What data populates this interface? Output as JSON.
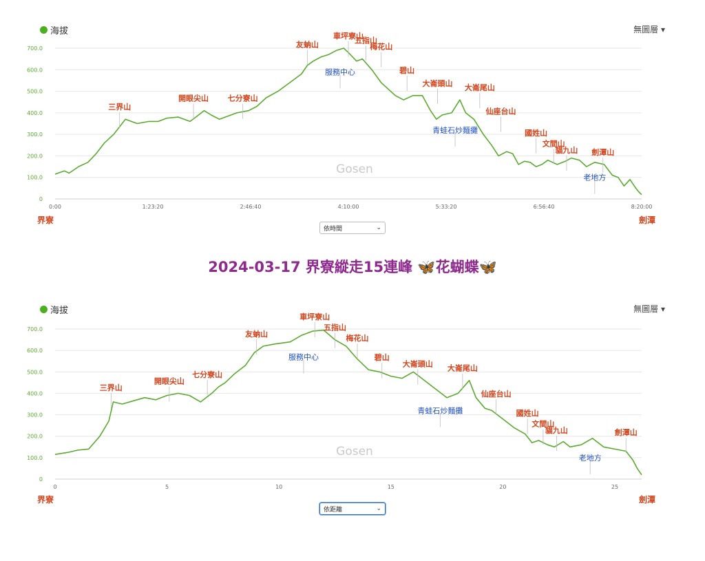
{
  "title_prefix": "2024-03-17 界寮縱走15連峰 ",
  "title_butterfly": "🦋",
  "title_mid": "花蝴蝶",
  "legend_label": "海拔",
  "layer_label": "無圖層 ▾",
  "watermark": "Gosen",
  "colors": {
    "line": "#5aaa2e",
    "peak": "#d2461e",
    "poi": "#1f4fbf",
    "title": "#8e2a8e",
    "ytick": "#5aaa2e"
  },
  "start_label": "界寮",
  "end_label": "劍潭",
  "chart_data": [
    {
      "type": "line",
      "name": "elevation-by-time",
      "selector": "依時間",
      "y_ticks": [
        "0",
        "100.0",
        "200.0",
        "300.0",
        "400.0",
        "500.0",
        "600.0",
        "700.0"
      ],
      "x_ticks": [
        "0:00",
        "1:23:20",
        "2:46:40",
        "4:10:00",
        "5:33:20",
        "6:56:40",
        "8:20:00"
      ],
      "xlim": [
        0,
        500
      ],
      "ylim": [
        0,
        700
      ],
      "x": [
        0,
        8,
        12,
        20,
        28,
        35,
        42,
        50,
        60,
        70,
        80,
        88,
        95,
        105,
        115,
        120,
        127,
        133,
        140,
        145,
        155,
        165,
        172,
        180,
        190,
        200,
        210,
        215,
        220,
        227,
        233,
        240,
        246,
        250,
        257,
        262,
        270,
        278,
        282,
        290,
        297,
        305,
        313,
        320,
        325,
        330,
        338,
        345,
        350,
        357,
        365,
        372,
        378,
        385,
        390,
        395,
        400,
        405,
        410,
        415,
        420,
        428,
        435,
        440,
        447,
        453,
        460,
        468,
        475,
        480,
        485,
        490,
        495,
        498,
        500
      ],
      "y": [
        115,
        130,
        120,
        150,
        170,
        210,
        260,
        300,
        370,
        350,
        360,
        360,
        375,
        380,
        360,
        380,
        410,
        390,
        370,
        380,
        400,
        410,
        430,
        470,
        500,
        540,
        580,
        620,
        640,
        660,
        670,
        690,
        700,
        680,
        640,
        650,
        600,
        540,
        520,
        480,
        460,
        480,
        480,
        410,
        370,
        390,
        400,
        460,
        400,
        370,
        300,
        250,
        200,
        220,
        210,
        160,
        175,
        170,
        150,
        160,
        180,
        160,
        175,
        190,
        180,
        150,
        170,
        160,
        110,
        100,
        60,
        90,
        50,
        30,
        20
      ],
      "peaks": [
        {
          "name": "三界山",
          "x": 55,
          "y": 370
        },
        {
          "name": "開眼尖山",
          "x": 118,
          "y": 410
        },
        {
          "name": "七分寮山",
          "x": 160,
          "y": 410
        },
        {
          "name": "友蚋山",
          "x": 215,
          "y": 660
        },
        {
          "name": "車坪寮山",
          "x": 250,
          "y": 700
        },
        {
          "name": "五指山",
          "x": 265,
          "y": 680
        },
        {
          "name": "梅花山",
          "x": 278,
          "y": 650
        },
        {
          "name": "碧山",
          "x": 300,
          "y": 540
        },
        {
          "name": "大崙頭山",
          "x": 326,
          "y": 480
        },
        {
          "name": "大崙尾山",
          "x": 362,
          "y": 460
        },
        {
          "name": "仙座台山",
          "x": 380,
          "y": 350
        },
        {
          "name": "國姓山",
          "x": 410,
          "y": 250
        },
        {
          "name": "文間山",
          "x": 425,
          "y": 200
        },
        {
          "name": "貓九山",
          "x": 436,
          "y": 170
        },
        {
          "name": "劍潭山",
          "x": 467,
          "y": 160
        }
      ],
      "pois": [
        {
          "name": "服務中心",
          "x": 243,
          "y": 590
        },
        {
          "name": "青蛙石炒麵攤",
          "x": 341,
          "y": 320
        },
        {
          "name": "老地方",
          "x": 460,
          "y": 100
        }
      ]
    },
    {
      "type": "line",
      "name": "elevation-by-distance",
      "selector": "依距離",
      "y_ticks": [
        "0",
        "100.0",
        "200.0",
        "300.0",
        "400.0",
        "500.0",
        "600.0",
        "700.0"
      ],
      "x_ticks": [
        "0",
        "5",
        "10",
        "15",
        "20",
        "25"
      ],
      "xlim": [
        0,
        26.2
      ],
      "ylim": [
        0,
        700
      ],
      "x": [
        0,
        0.6,
        1.0,
        1.5,
        2.0,
        2.4,
        2.6,
        3.0,
        3.5,
        4.0,
        4.5,
        5.0,
        5.5,
        6.0,
        6.5,
        7.0,
        7.3,
        7.6,
        8.0,
        8.5,
        8.9,
        9.3,
        9.8,
        10.5,
        11.0,
        11.5,
        12.0,
        12.5,
        13.0,
        13.5,
        14.0,
        14.5,
        15.0,
        15.5,
        16.0,
        16.5,
        17.0,
        17.5,
        18.0,
        18.5,
        18.8,
        19.2,
        19.5,
        20.0,
        20.5,
        21.0,
        21.3,
        21.6,
        22.0,
        22.3,
        22.7,
        23.0,
        23.5,
        24.0,
        24.5,
        25.0,
        25.5,
        25.8,
        26.0,
        26.2
      ],
      "y": [
        115,
        125,
        135,
        140,
        200,
        270,
        360,
        350,
        365,
        380,
        370,
        390,
        400,
        390,
        360,
        400,
        430,
        450,
        490,
        530,
        590,
        620,
        630,
        640,
        670,
        690,
        695,
        650,
        620,
        560,
        510,
        500,
        480,
        470,
        500,
        460,
        420,
        380,
        400,
        460,
        380,
        330,
        320,
        280,
        240,
        210,
        170,
        180,
        160,
        150,
        175,
        150,
        160,
        190,
        150,
        140,
        130,
        90,
        50,
        20
      ],
      "peaks": [
        {
          "name": "三界山",
          "x": 2.5,
          "y": 370
        },
        {
          "name": "開眼尖山",
          "x": 5.1,
          "y": 400
        },
        {
          "name": "七分寮山",
          "x": 6.8,
          "y": 430
        },
        {
          "name": "友蚋山",
          "x": 9.0,
          "y": 620
        },
        {
          "name": "車坪寮山",
          "x": 11.6,
          "y": 700
        },
        {
          "name": "五指山",
          "x": 12.5,
          "y": 650
        },
        {
          "name": "梅花山",
          "x": 13.5,
          "y": 600
        },
        {
          "name": "碧山",
          "x": 14.6,
          "y": 510
        },
        {
          "name": "大崙頭山",
          "x": 16.2,
          "y": 480
        },
        {
          "name": "大崙尾山",
          "x": 18.2,
          "y": 460
        },
        {
          "name": "仙座台山",
          "x": 19.7,
          "y": 340
        },
        {
          "name": "國姓山",
          "x": 21.1,
          "y": 250
        },
        {
          "name": "文間山",
          "x": 21.8,
          "y": 200
        },
        {
          "name": "貓九山",
          "x": 22.4,
          "y": 170
        },
        {
          "name": "劍潭山",
          "x": 25.5,
          "y": 160
        }
      ],
      "pois": [
        {
          "name": "服務中心",
          "x": 11.1,
          "y": 570
        },
        {
          "name": "青蛙石炒麵攤",
          "x": 17.2,
          "y": 320
        },
        {
          "name": "老地方",
          "x": 23.9,
          "y": 100
        }
      ]
    }
  ]
}
